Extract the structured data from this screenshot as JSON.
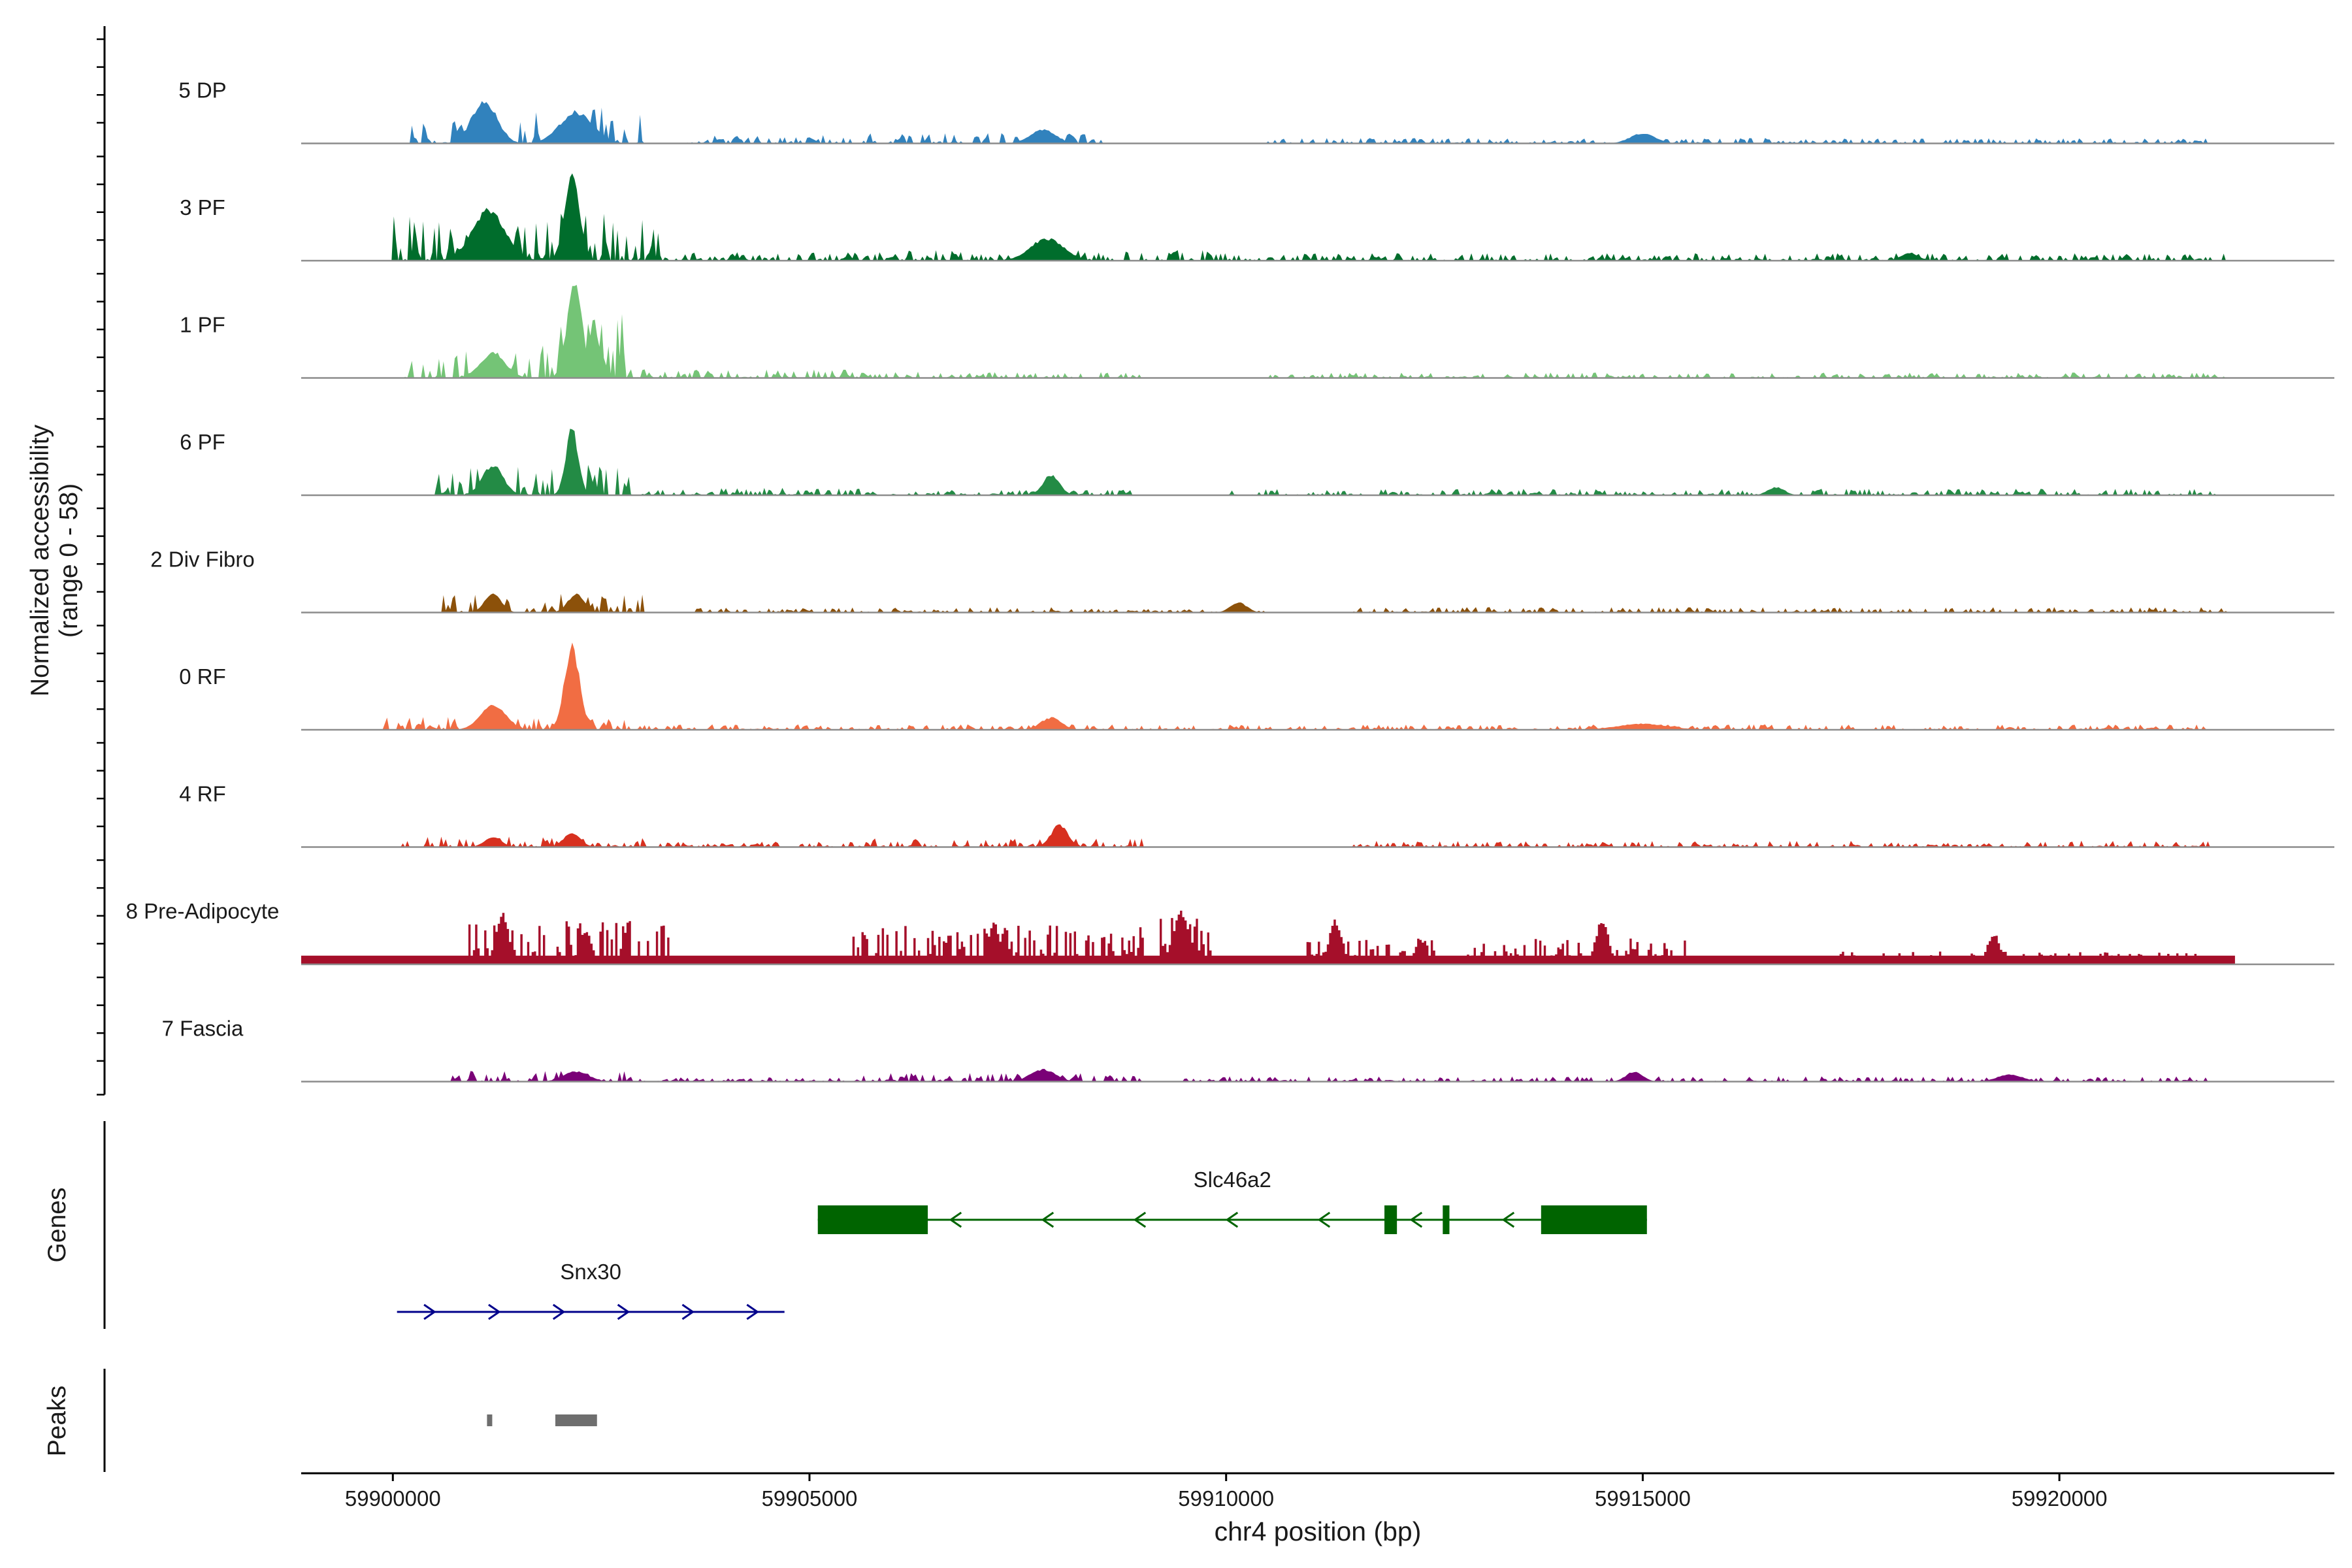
{
  "chart_data": {
    "type": "area",
    "title": "",
    "ylabel_line1": "Normalized accessibility",
    "ylabel_line2": "(range 0 - 58)",
    "xlabel": "chr4 position (bp)",
    "xlim": [
      59898900,
      59923300
    ],
    "ylim": [
      0,
      58
    ],
    "xticks": [
      59900000,
      59905000,
      59910000,
      59915000,
      59920000
    ],
    "xtick_labels": [
      "59900000",
      "59905000",
      "59910000",
      "59915000",
      "59920000"
    ],
    "tracks": [
      {
        "name": "5 DP",
        "color": "#3182bd",
        "regions": [
          [
            59900200,
            59901800,
            0.35
          ],
          [
            59902000,
            59903000,
            0.35
          ],
          [
            59903500,
            59905500,
            0.08
          ],
          [
            59905500,
            59908500,
            0.1
          ],
          [
            59910500,
            59921800,
            0.05
          ]
        ],
        "peaks": [
          [
            59901100,
            0.42,
            300
          ],
          [
            59902200,
            0.3,
            400
          ],
          [
            59907800,
            0.14,
            300
          ],
          [
            59915000,
            0.1,
            300
          ]
        ]
      },
      {
        "name": "3 PF",
        "color": "#006d2c",
        "regions": [
          [
            59900000,
            59901800,
            0.45
          ],
          [
            59901800,
            59903200,
            0.45
          ],
          [
            59903200,
            59906000,
            0.08
          ],
          [
            59906000,
            59909800,
            0.1
          ],
          [
            59909800,
            59922000,
            0.07
          ]
        ],
        "peaks": [
          [
            59901150,
            0.5,
            400
          ],
          [
            59902150,
            0.85,
            180
          ],
          [
            59907850,
            0.22,
            400
          ],
          [
            59918200,
            0.08,
            200
          ]
        ]
      },
      {
        "name": "1 PF",
        "color": "#74c476",
        "regions": [
          [
            59900100,
            59901800,
            0.25
          ],
          [
            59901800,
            59902800,
            0.6
          ],
          [
            59902800,
            59905500,
            0.08
          ],
          [
            59905500,
            59909000,
            0.06
          ],
          [
            59910500,
            59922000,
            0.05
          ]
        ],
        "peaks": [
          [
            59901200,
            0.25,
            300
          ],
          [
            59902180,
            0.95,
            180
          ],
          [
            59902400,
            0.45,
            200
          ]
        ]
      },
      {
        "name": "6 PF",
        "color": "#238b45",
        "regions": [
          [
            59900500,
            59903000,
            0.3
          ],
          [
            59903000,
            59906000,
            0.07
          ],
          [
            59906000,
            59909000,
            0.05
          ],
          [
            59910000,
            59922000,
            0.06
          ]
        ],
        "peaks": [
          [
            59901200,
            0.3,
            250
          ],
          [
            59902150,
            0.65,
            150
          ],
          [
            59907900,
            0.2,
            200
          ],
          [
            59916600,
            0.08,
            200
          ]
        ]
      },
      {
        "name": "2 Div Fibro",
        "color": "#8c510a",
        "regions": [
          [
            59900600,
            59903000,
            0.18
          ],
          [
            59903500,
            59905500,
            0.05
          ],
          [
            59905500,
            59910500,
            0.05
          ],
          [
            59911500,
            59922000,
            0.05
          ]
        ],
        "peaks": [
          [
            59901200,
            0.18,
            200
          ],
          [
            59902200,
            0.18,
            200
          ],
          [
            59910150,
            0.1,
            200
          ]
        ]
      },
      {
        "name": "0 RF",
        "color": "#f16d43",
        "regions": [
          [
            59899900,
            59902800,
            0.12
          ],
          [
            59902800,
            59905500,
            0.05
          ],
          [
            59905500,
            59910500,
            0.05
          ],
          [
            59910500,
            59921800,
            0.05
          ]
        ],
        "peaks": [
          [
            59901200,
            0.25,
            300
          ],
          [
            59902150,
            0.82,
            180
          ],
          [
            59907900,
            0.12,
            250
          ],
          [
            59915000,
            0.06,
            600
          ]
        ]
      },
      {
        "name": "4 RF",
        "color": "#d7301f",
        "regions": [
          [
            59900100,
            59903000,
            0.1
          ],
          [
            59903000,
            59905500,
            0.05
          ],
          [
            59905500,
            59909000,
            0.08
          ],
          [
            59911500,
            59921800,
            0.06
          ]
        ],
        "peaks": [
          [
            59901200,
            0.1,
            200
          ],
          [
            59902150,
            0.14,
            200
          ],
          [
            59908000,
            0.22,
            200
          ]
        ]
      },
      {
        "name": "8 Pre-Adipocyte",
        "color": "#a50f2a",
        "blocky": true,
        "regions": [
          [
            59900900,
            59903300,
            0.35
          ],
          [
            59905500,
            59909000,
            0.3
          ],
          [
            59909200,
            59909800,
            0.4
          ],
          [
            59910900,
            59912500,
            0.2
          ],
          [
            59912800,
            59915500,
            0.2
          ],
          [
            59917300,
            59921800,
            0.1
          ]
        ],
        "peaks": [
          [
            59901300,
            0.5,
            150
          ],
          [
            59902300,
            0.32,
            150
          ],
          [
            59907200,
            0.4,
            150
          ],
          [
            59909450,
            0.5,
            200
          ],
          [
            59911300,
            0.42,
            150
          ],
          [
            59914500,
            0.45,
            150
          ],
          [
            59919200,
            0.3,
            150
          ]
        ]
      },
      {
        "name": "7 Fascia",
        "color": "#7a0177",
        "regions": [
          [
            59900700,
            59902900,
            0.1
          ],
          [
            59902900,
            59905500,
            0.04
          ],
          [
            59905500,
            59909000,
            0.08
          ],
          [
            59909500,
            59922000,
            0.05
          ]
        ],
        "peaks": [
          [
            59902200,
            0.1,
            300
          ],
          [
            59907800,
            0.12,
            300
          ],
          [
            59914900,
            0.1,
            200
          ],
          [
            59919400,
            0.07,
            300
          ]
        ]
      }
    ],
    "genes": [
      {
        "name": "Slc46a2",
        "strand": "-",
        "color": "#006400",
        "exons": [
          [
            59905100,
            59906420
          ],
          [
            59911900,
            59912050
          ],
          [
            59912600,
            59912680
          ],
          [
            59913780,
            59915050
          ]
        ]
      },
      {
        "name": "Snx30",
        "strand": "+",
        "color": "#00008b",
        "start": 59900050,
        "end": 59904700
      }
    ],
    "peak_regions": [
      [
        59901130,
        59901180
      ],
      [
        59901950,
        59902450
      ]
    ],
    "panel_labels": {
      "genes": "Genes",
      "peaks": "Peaks"
    }
  }
}
